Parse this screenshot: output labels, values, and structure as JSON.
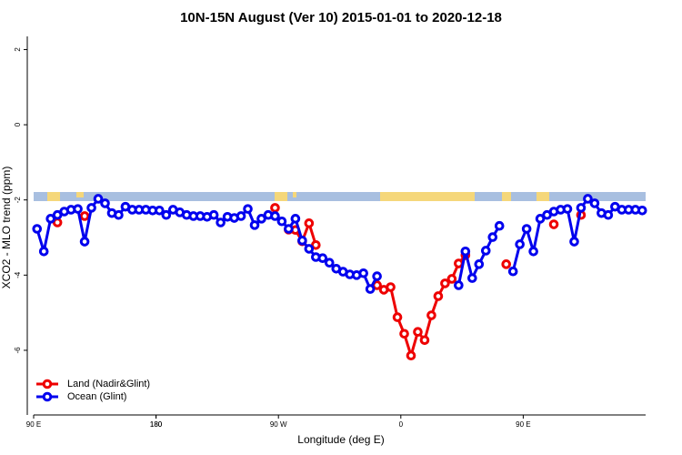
{
  "chart_data": {
    "type": "line",
    "title": "10N-15N August (Ver 10)   2015-01-01 to 2020-12-18",
    "x_label": "Longitude (deg E)",
    "y_label": "XCO2 - MLO trend (ppm)",
    "x": [
      92.5,
      97.5,
      102.5,
      107.5,
      112.5,
      117.5,
      122.5,
      127.5,
      132.5,
      137.5,
      142.5,
      147.5,
      152.5,
      157.5,
      162.5,
      167.5,
      172.5,
      177.5,
      182.5,
      187.5,
      192.5,
      197.5,
      202.5,
      207.5,
      212.5,
      217.5,
      222.5,
      227.5,
      232.5,
      237.5,
      242.5,
      247.5,
      252.5,
      257.5,
      262.5,
      267.5,
      272.5,
      277.5,
      282.5,
      287.5,
      292.5,
      297.5,
      302.5,
      307.5,
      312.5,
      317.5,
      322.5,
      327.5,
      332.5,
      337.5,
      342.5,
      347.5,
      352.5,
      357.5,
      362.5,
      367.5,
      372.5,
      377.5,
      382.5,
      387.5,
      392.5,
      397.5,
      402.5,
      407.5,
      412.5,
      417.5,
      422.5,
      427.5,
      432.5,
      437.5,
      442.5,
      447.5,
      452.5,
      457.5,
      462.5,
      467.5,
      472.5,
      477.5,
      482.5,
      487.5,
      492.5,
      497.5,
      502.5,
      507.5,
      512.5,
      517.5,
      522.5,
      527.5,
      532.5,
      537.5
    ],
    "series": [
      {
        "name": "Land (Nadir&Glint)",
        "color": "#ee0000",
        "values": [
          null,
          null,
          null,
          -2.6,
          null,
          null,
          null,
          -2.43,
          null,
          null,
          null,
          null,
          null,
          null,
          null,
          null,
          null,
          null,
          null,
          null,
          null,
          null,
          null,
          null,
          null,
          null,
          null,
          null,
          null,
          null,
          null,
          null,
          null,
          null,
          null,
          -2.21,
          null,
          -2.79,
          -2.8,
          -3.1,
          -2.62,
          -3.2,
          null,
          null,
          null,
          null,
          null,
          null,
          null,
          null,
          -4.27,
          -4.39,
          -4.32,
          -5.12,
          -5.56,
          -6.14,
          -5.51,
          -5.73,
          -5.07,
          -4.56,
          -4.22,
          -4.1,
          -3.69,
          -3.47,
          null,
          null,
          null,
          null,
          null,
          -3.71,
          null,
          null,
          null,
          null,
          null,
          null,
          -2.65,
          null,
          null,
          null,
          -2.4,
          null,
          null,
          null,
          null,
          null,
          null,
          null,
          null,
          null
        ]
      },
      {
        "name": "Ocean (Glint)",
        "color": "#0000ee",
        "values": [
          -2.77,
          -3.37,
          -2.5,
          -2.4,
          -2.31,
          -2.26,
          -2.24,
          -3.11,
          -2.21,
          -1.97,
          -2.09,
          -2.35,
          -2.4,
          -2.18,
          -2.26,
          -2.26,
          -2.26,
          -2.28,
          -2.28,
          -2.4,
          -2.26,
          -2.33,
          -2.4,
          -2.43,
          -2.43,
          -2.45,
          -2.4,
          -2.6,
          -2.45,
          -2.48,
          -2.43,
          -2.24,
          -2.67,
          -2.5,
          -2.4,
          -2.43,
          -2.57,
          -2.77,
          -2.5,
          -3.08,
          -3.3,
          -3.52,
          -3.55,
          -3.67,
          -3.83,
          -3.91,
          -3.98,
          -4.0,
          -3.95,
          -4.37,
          -4.03,
          null,
          null,
          null,
          null,
          null,
          null,
          null,
          null,
          null,
          null,
          null,
          -4.27,
          -3.37,
          -4.08,
          -3.71,
          -3.35,
          -2.99,
          -2.69,
          null,
          -3.9,
          -3.18,
          -2.77,
          -3.37,
          -2.5,
          -2.4,
          -2.31,
          -2.26,
          -2.24,
          -3.11,
          -2.21,
          -1.97,
          -2.09,
          -2.35,
          -2.4,
          -2.18,
          -2.26,
          -2.26,
          -2.26,
          -2.28
        ]
      }
    ],
    "xlim": [
      90,
      540
    ],
    "xticks": [
      {
        "value": 90,
        "label": "90 E"
      },
      180,
      {
        "value": 270,
        "label": "90 W"
      },
      {
        "value": 360,
        "label": "0"
      },
      {
        "value": 450,
        "label": "90 E"
      },
      180
    ],
    "ylim": [
      -7.72,
      2.35
    ],
    "yticks": [
      -6,
      -4,
      -2,
      0,
      2
    ],
    "legend": "bottom-left"
  }
}
